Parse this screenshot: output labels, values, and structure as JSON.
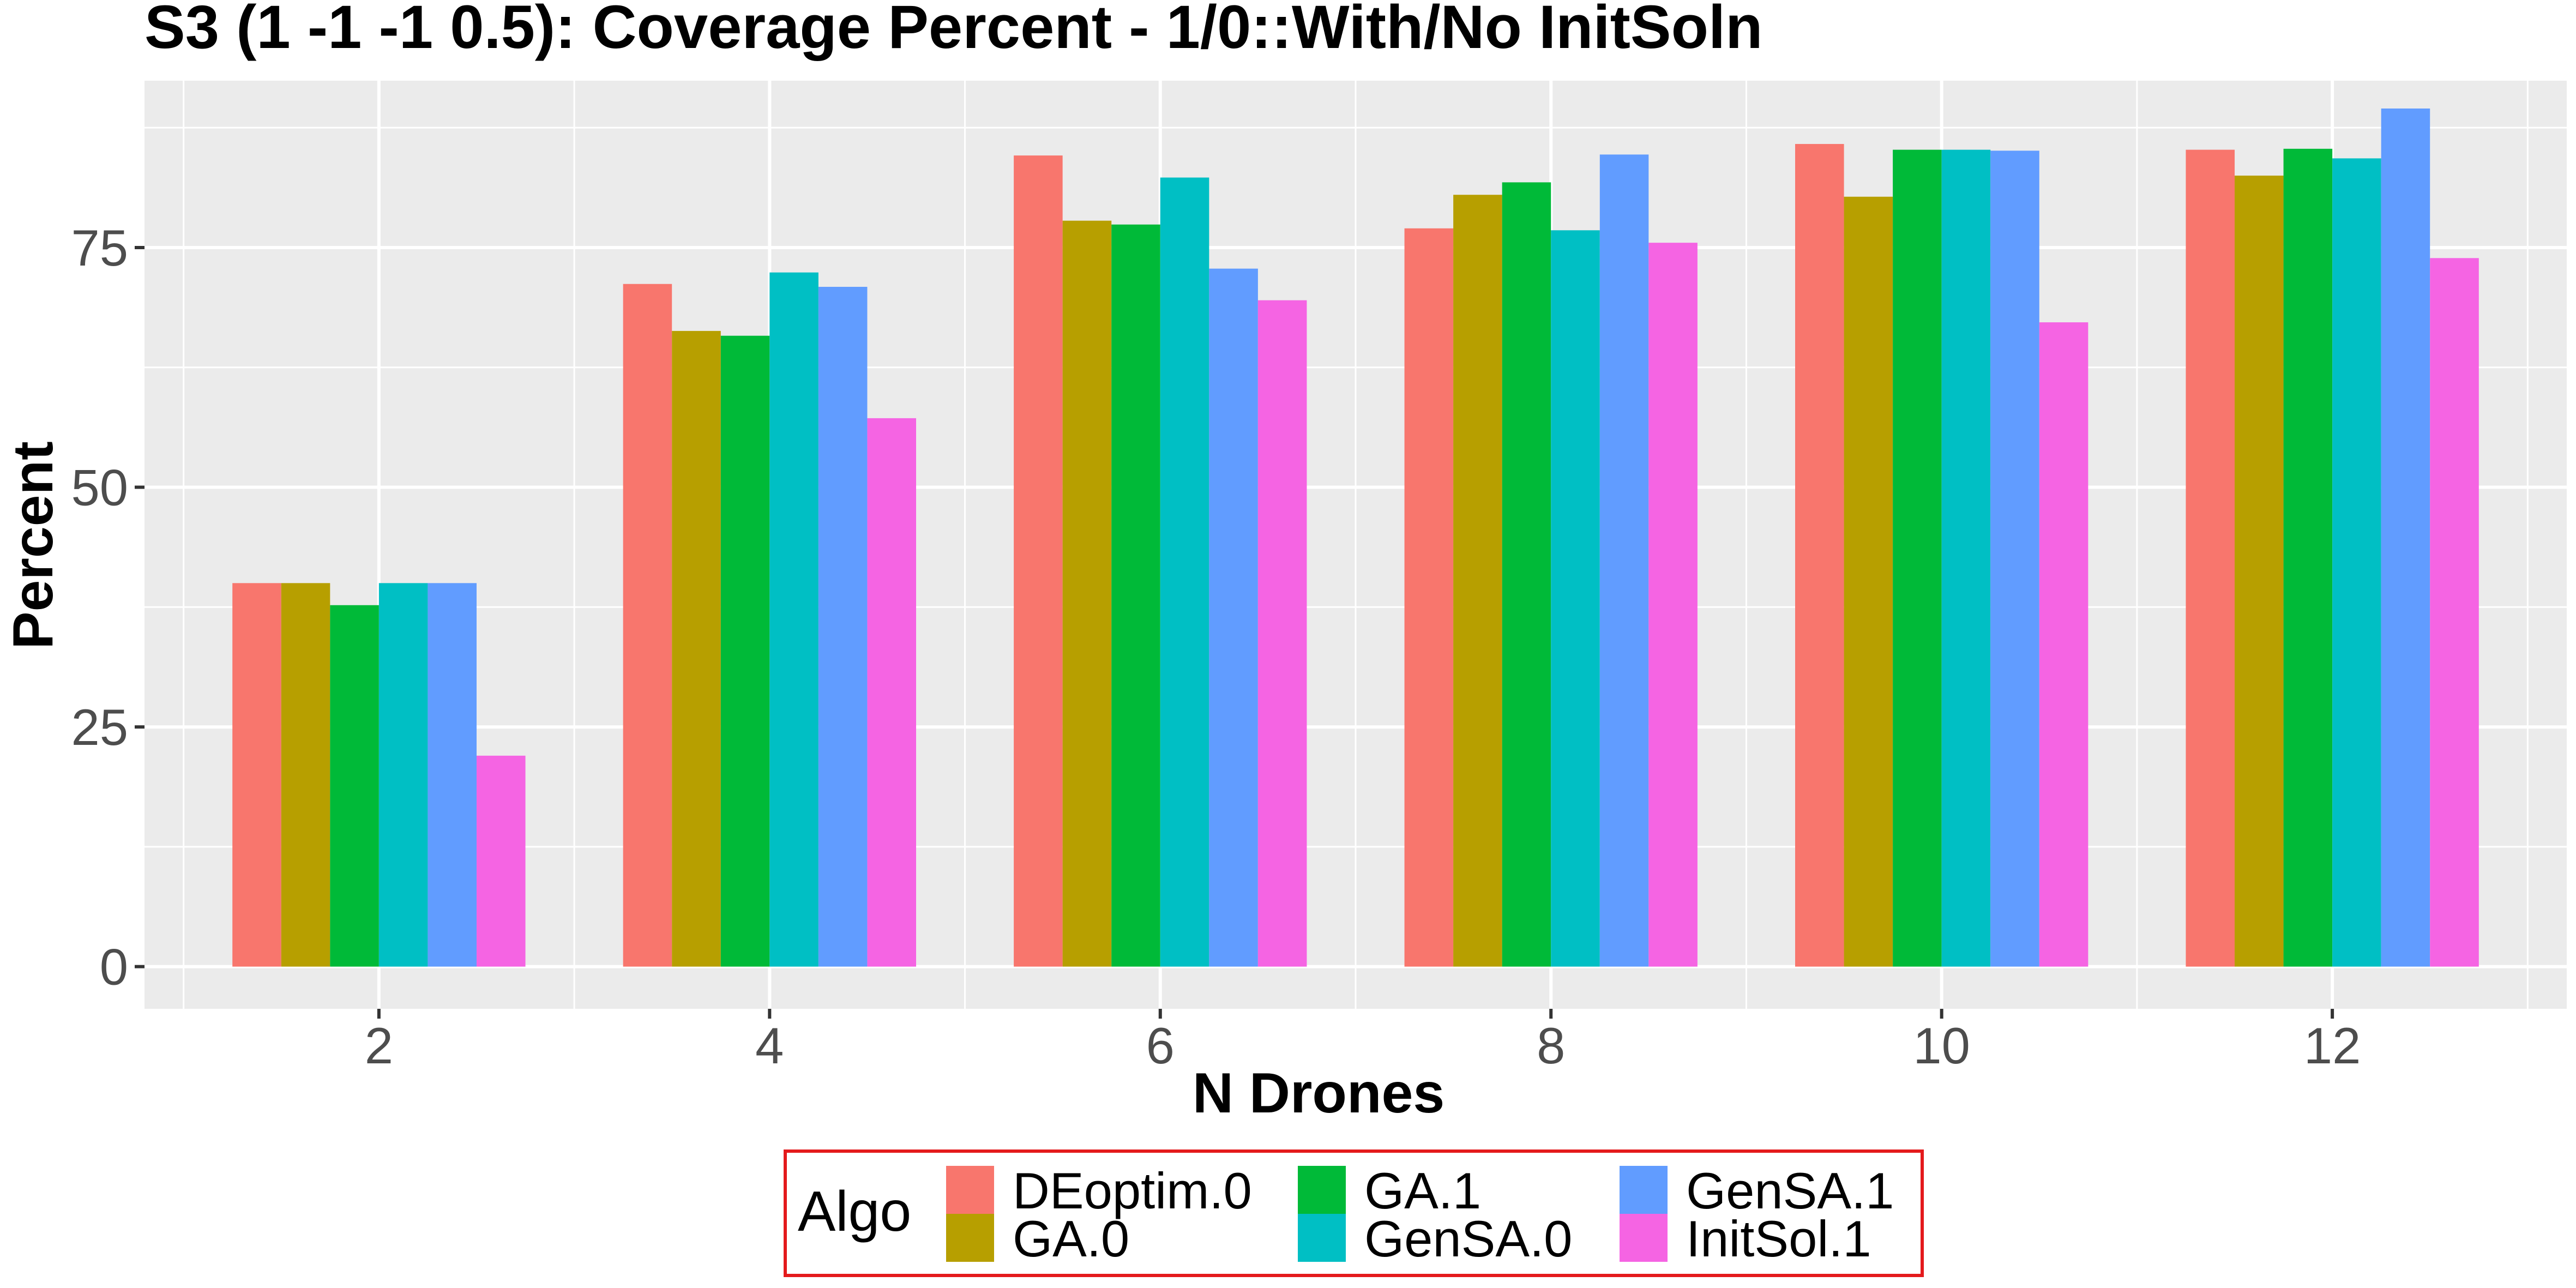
{
  "chart_data": {
    "type": "bar",
    "title": "S3 (1 -1 -1 0.5): Coverage Percent - 1/0::With/No InitSoln",
    "xlabel": "N Drones",
    "ylabel": "Percent",
    "categories": [
      "2",
      "4",
      "6",
      "8",
      "10",
      "12"
    ],
    "x_values": [
      2,
      4,
      6,
      8,
      10,
      12
    ],
    "xlim": [
      0.8,
      13.2
    ],
    "ylim": [
      -4.4,
      92.4
    ],
    "y_ticks": [
      0,
      25,
      50,
      75
    ],
    "y_tick_labels": [
      "0",
      "25",
      "50",
      "75"
    ],
    "grid": true,
    "legend": {
      "title": "Algo",
      "position": "bottom",
      "border_color": "#e41a1c"
    },
    "series": [
      {
        "name": "DEoptim.0",
        "color": "#F8766D",
        "values": [
          40.0,
          71.2,
          84.6,
          77.0,
          85.8,
          85.2
        ]
      },
      {
        "name": "GA.0",
        "color": "#B79F00",
        "values": [
          40.0,
          66.3,
          77.8,
          80.5,
          80.3,
          82.5
        ]
      },
      {
        "name": "GA.1",
        "color": "#00BA38",
        "values": [
          37.7,
          65.8,
          77.4,
          81.8,
          85.2,
          85.3
        ]
      },
      {
        "name": "GenSA.0",
        "color": "#00BFC4",
        "values": [
          40.0,
          72.4,
          82.3,
          76.8,
          85.2,
          84.3
        ]
      },
      {
        "name": "GenSA.1",
        "color": "#619CFF",
        "values": [
          40.0,
          70.9,
          72.8,
          84.7,
          85.1,
          89.5
        ]
      },
      {
        "name": "InitSol.1",
        "color": "#F564E3",
        "values": [
          22.0,
          57.2,
          69.5,
          75.5,
          67.2,
          73.9
        ]
      }
    ]
  }
}
